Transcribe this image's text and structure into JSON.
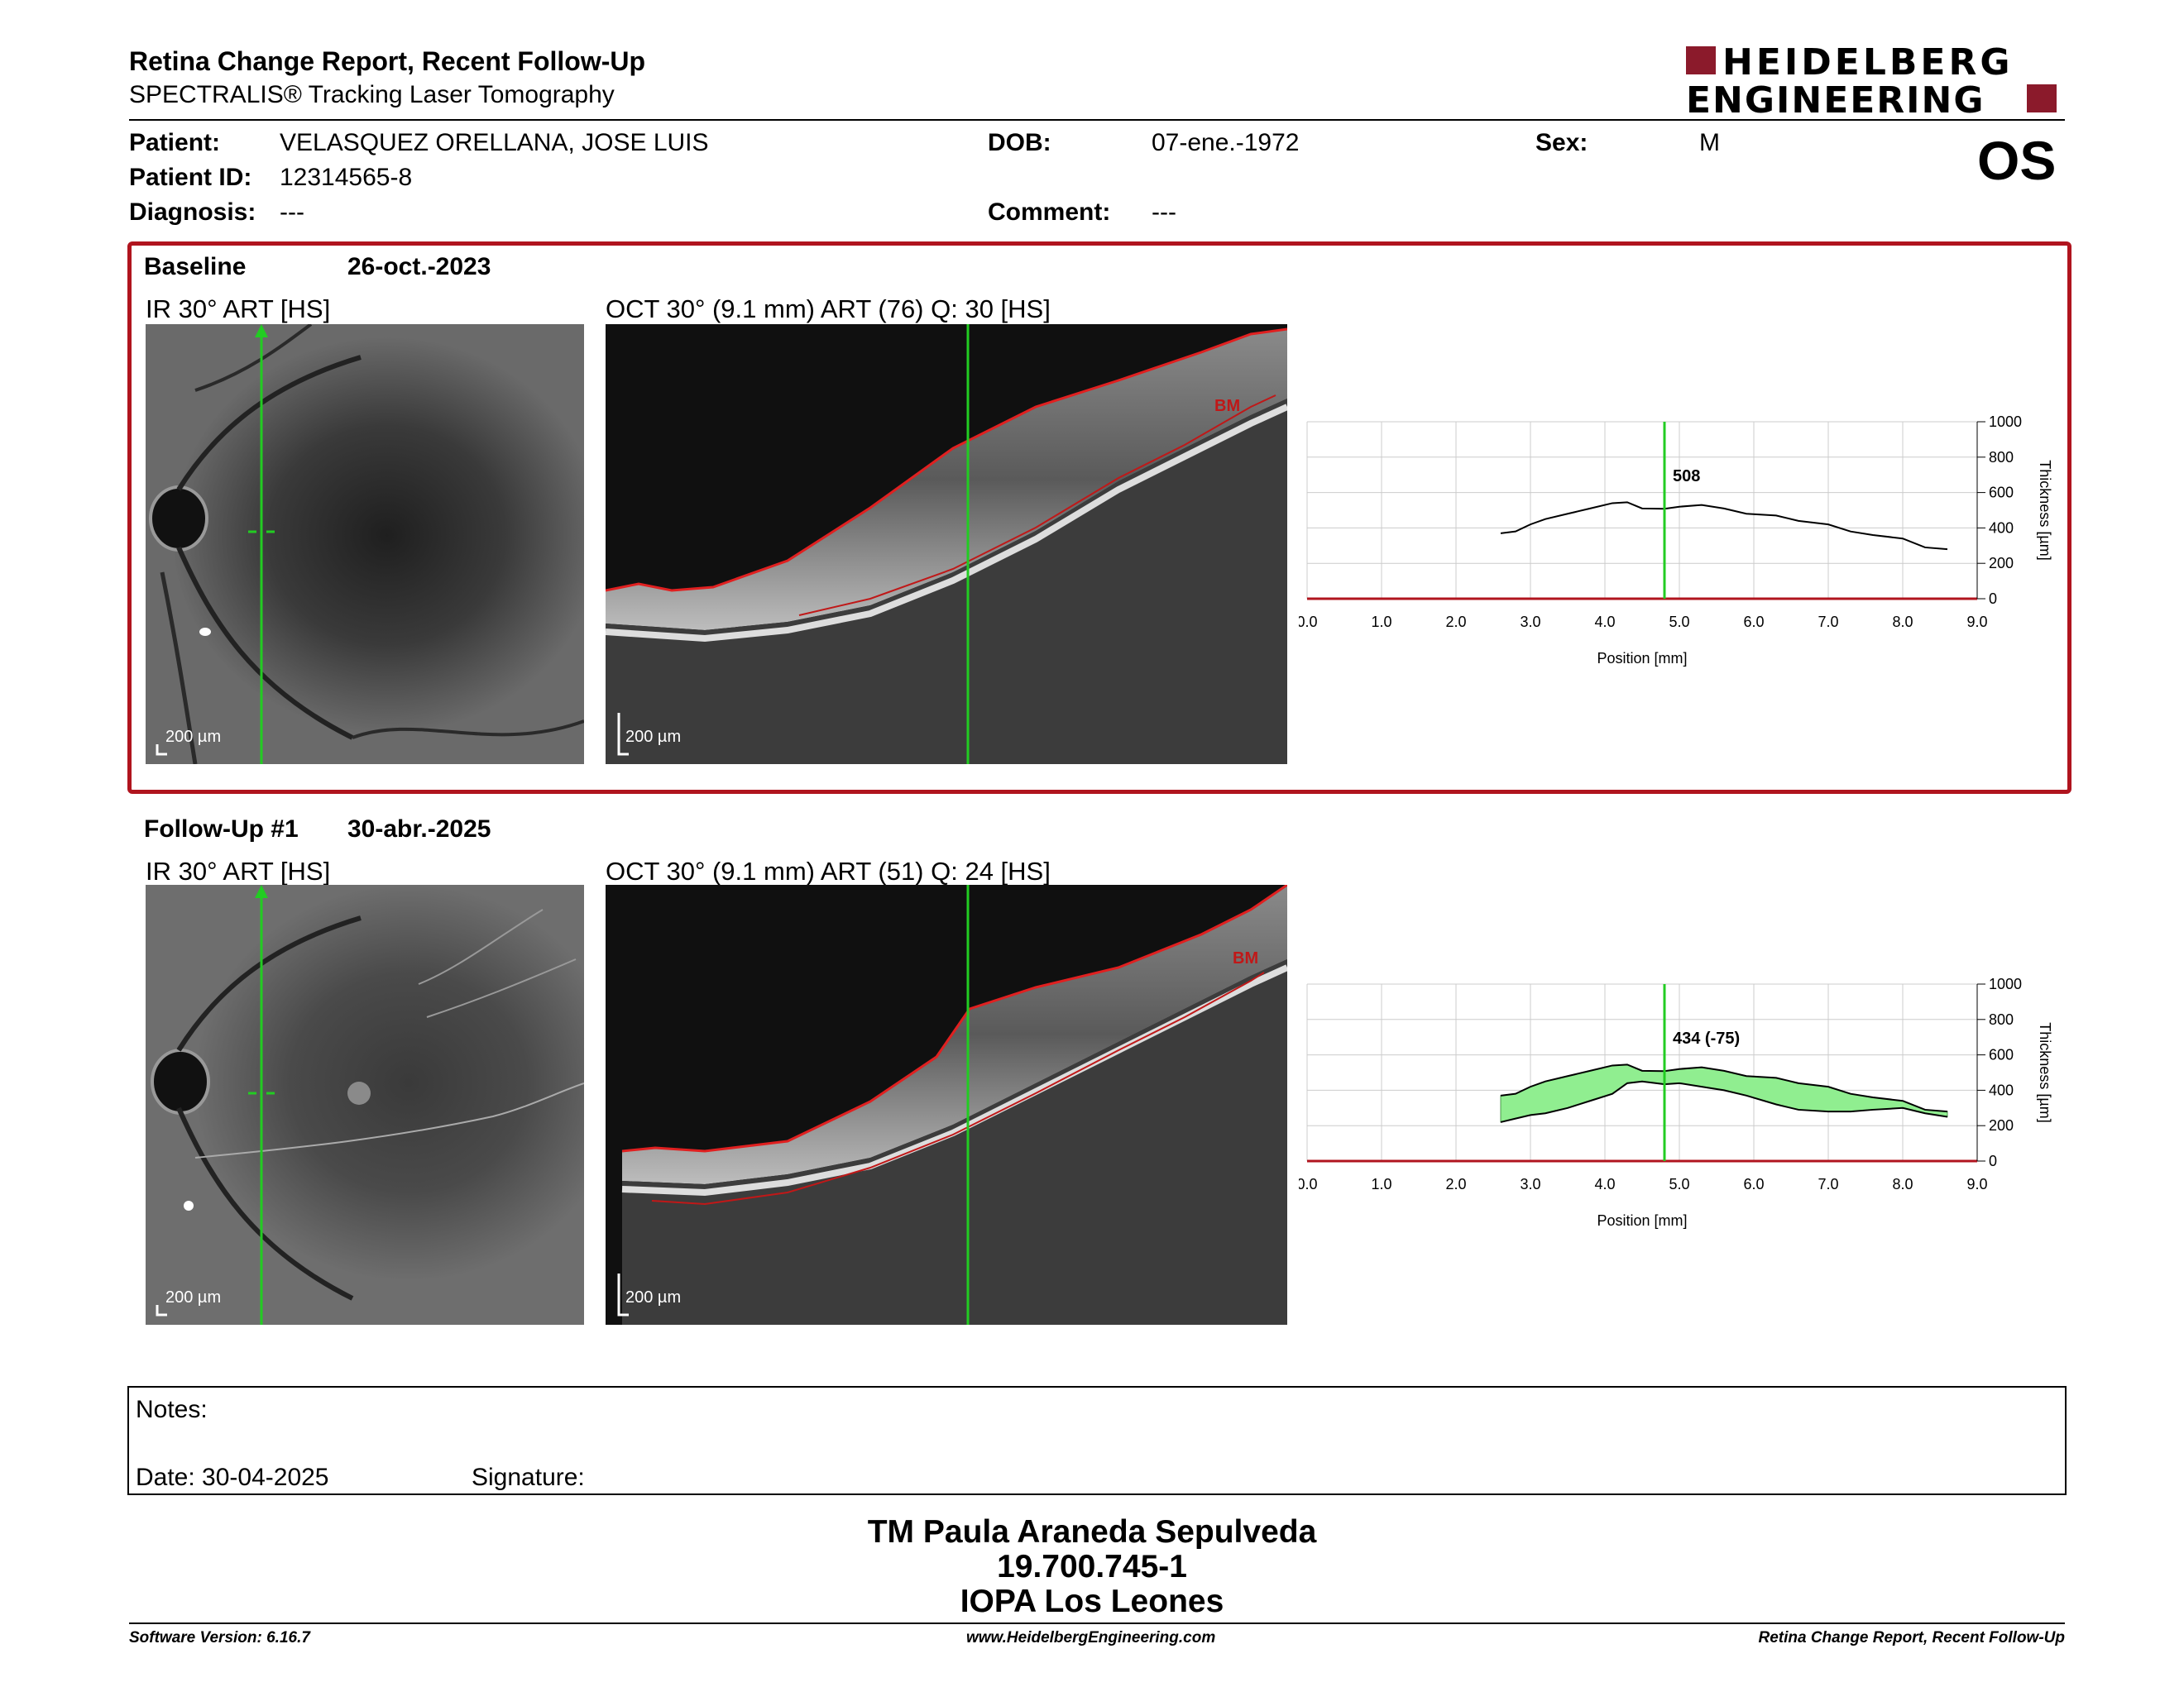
{
  "header": {
    "title": "Retina Change Report, Recent Follow-Up",
    "subtitle": "SPECTRALIS® Tracking Laser Tomography",
    "logo_line1": "HEIDELBERG",
    "logo_line2": "ENGINEERING",
    "eye": "OS"
  },
  "patient": {
    "patient_label": "Patient:",
    "patient_value": "VELASQUEZ ORELLANA, JOSE LUIS",
    "id_label": "Patient ID:",
    "id_value": "12314565-8",
    "diag_label": "Diagnosis:",
    "diag_value": "---",
    "dob_label": "DOB:",
    "dob_value": "07-ene.-1972",
    "comment_label": "Comment:",
    "comment_value": "---",
    "sex_label": "Sex:",
    "sex_value": "M"
  },
  "baseline": {
    "label": "Baseline",
    "date": "26-oct.-2023",
    "ir_title": "IR 30° ART [HS]",
    "oct_title": "OCT 30° (9.1 mm) ART (76) Q: 30 [HS]",
    "scale": "200 µm",
    "bm": "BM",
    "marker_value": "508"
  },
  "followup": {
    "label": "Follow-Up #1",
    "date": "30-abr.-2025",
    "ir_title": "IR 30° ART [HS]",
    "oct_title": "OCT 30° (9.1 mm) ART (51) Q: 24 [HS]",
    "scale": "200 µm",
    "bm": "BM",
    "marker_value": "434 (-75)"
  },
  "chart_data": [
    {
      "type": "line",
      "xlabel": "Position [mm]",
      "ylabel": "Thickness [µm]",
      "xlim": [
        0,
        9
      ],
      "ylim": [
        0,
        1000
      ],
      "x_ticks": [
        "0.0",
        "1.0",
        "2.0",
        "3.0",
        "4.0",
        "5.0",
        "6.0",
        "7.0",
        "8.0",
        "9.0"
      ],
      "y_ticks": [
        "0",
        "200",
        "400",
        "600",
        "800",
        "1000"
      ],
      "marker_x": 4.8,
      "marker_label": "508",
      "series": [
        {
          "x": [
            2.6,
            2.8,
            3.0,
            3.2,
            3.5,
            3.8,
            4.1,
            4.3,
            4.5,
            4.8,
            5.0,
            5.3,
            5.6,
            5.9,
            6.3,
            6.6,
            7.0,
            7.3,
            7.6,
            8.0,
            8.3,
            8.6
          ],
          "values": [
            370,
            380,
            420,
            450,
            480,
            510,
            540,
            545,
            510,
            508,
            520,
            530,
            510,
            480,
            470,
            440,
            420,
            380,
            360,
            340,
            290,
            280
          ]
        }
      ],
      "grid": true
    },
    {
      "type": "area",
      "xlabel": "Position [mm]",
      "ylabel": "Thickness [µm]",
      "xlim": [
        0,
        9
      ],
      "ylim": [
        0,
        1000
      ],
      "x_ticks": [
        "0.0",
        "1.0",
        "2.0",
        "3.0",
        "4.0",
        "5.0",
        "6.0",
        "7.0",
        "8.0",
        "9.0"
      ],
      "y_ticks": [
        "0",
        "200",
        "400",
        "600",
        "800",
        "1000"
      ],
      "marker_x": 4.8,
      "marker_label": "434 (-75)",
      "series": [
        {
          "x": [
            2.6,
            2.8,
            3.0,
            3.2,
            3.5,
            3.8,
            4.1,
            4.3,
            4.5,
            4.8,
            5.0,
            5.3,
            5.6,
            5.9,
            6.3,
            6.6,
            7.0,
            7.3,
            7.6,
            8.0,
            8.3,
            8.6
          ],
          "values": [
            370,
            380,
            420,
            450,
            480,
            510,
            540,
            545,
            510,
            508,
            520,
            530,
            510,
            480,
            470,
            440,
            420,
            380,
            360,
            340,
            290,
            280
          ]
        },
        {
          "x": [
            2.6,
            2.8,
            3.0,
            3.2,
            3.5,
            3.8,
            4.1,
            4.3,
            4.5,
            4.8,
            5.0,
            5.3,
            5.6,
            5.9,
            6.3,
            6.6,
            7.0,
            7.3,
            7.6,
            8.0,
            8.3,
            8.6
          ],
          "values": [
            220,
            240,
            260,
            270,
            300,
            340,
            380,
            440,
            450,
            434,
            440,
            420,
            400,
            370,
            320,
            290,
            280,
            280,
            290,
            300,
            270,
            250
          ]
        }
      ],
      "grid": true
    }
  ],
  "chart_colors": {
    "line": "#000000",
    "marker": "#22cc22",
    "fill": "#90ee90",
    "axis": "#b0141e",
    "grid": "#cccccc"
  },
  "notes": {
    "notes_label": "Notes:",
    "date_label": "Date: 30-04-2025",
    "signature_label": "Signature:"
  },
  "signoff": {
    "line1": "TM Paula Araneda Sepulveda",
    "line2": "19.700.745-1",
    "line3": "IOPA Los Leones"
  },
  "footer": {
    "left": "Software Version: 6.16.7",
    "center": "www.HeidelbergEngineering.com",
    "right": "Retina Change Report, Recent Follow-Up"
  }
}
